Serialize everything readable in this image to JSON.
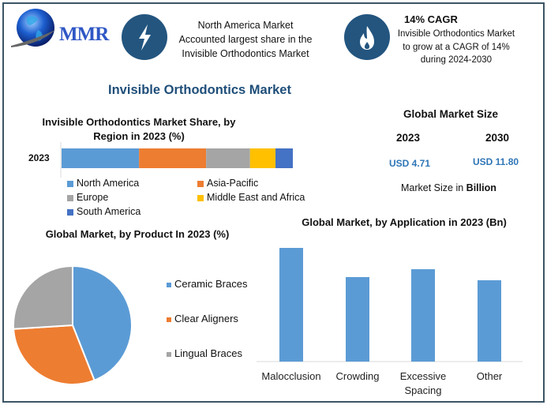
{
  "logo": {
    "text": "MMR"
  },
  "header": {
    "info1": {
      "icon": "lightning-bolt-icon",
      "lines": [
        "North America Market",
        "Accounted largest share in the",
        "Invisible Orthodontics Market"
      ]
    },
    "info2": {
      "icon": "flame-icon",
      "headline": "14% CAGR",
      "lines": [
        "Invisible Orthodontics Market",
        "to grow at a CAGR of 14%",
        "during 2024-2030"
      ]
    }
  },
  "title": "Invisible Orthodontics Market",
  "market_size": {
    "title": "Global Market Size",
    "years": [
      "2023",
      "2030"
    ],
    "values": [
      "USD 4.71",
      "USD 11.80"
    ],
    "note_prefix": "Market Size in ",
    "note_unit": "Billion"
  },
  "colors": {
    "blue": "#5b9bd5",
    "orange": "#ed7d31",
    "gray": "#a5a5a5",
    "yellow": "#ffc000",
    "darkblue": "#4472c4",
    "accent": "#23557f",
    "value": "#2e75b6"
  },
  "chart_data": [
    {
      "type": "bar",
      "orientation": "horizontal-stacked",
      "title": [
        "Invisible Orthodontics Market Share, by",
        "Region in 2023 (%)"
      ],
      "categories": [
        "2023"
      ],
      "series": [
        {
          "name": "North America",
          "values": [
            33.5
          ],
          "color": "#5b9bd5"
        },
        {
          "name": "Asia-Pacific",
          "values": [
            29
          ],
          "color": "#ed7d31"
        },
        {
          "name": "Europe",
          "values": [
            19
          ],
          "color": "#a5a5a5"
        },
        {
          "name": "Middle East and Africa",
          "values": [
            11
          ],
          "color": "#ffc000"
        },
        {
          "name": "South America",
          "values": [
            7.5
          ],
          "color": "#4472c4"
        }
      ],
      "xlim": [
        0,
        100
      ]
    },
    {
      "type": "pie",
      "title": "Global Market, by Product In 2023 (%)",
      "labels": [
        "Ceramic Braces",
        "Clear Aligners",
        "Lingual Braces"
      ],
      "values": [
        44,
        30,
        26
      ],
      "colors": [
        "#5b9bd5",
        "#ed7d31",
        "#a5a5a5"
      ],
      "legend": "right"
    },
    {
      "type": "bar",
      "title": "Global Market, by Application in 2023 (Bn)",
      "categories": [
        [
          "Malocclusion"
        ],
        [
          "Crowding"
        ],
        [
          "Excessive",
          "Spacing"
        ],
        [
          "Other"
        ]
      ],
      "values": [
        1.44,
        1.07,
        1.17,
        1.03
      ],
      "color": "#5b9bd5",
      "ylim": [
        0,
        1.5
      ],
      "grid": false
    }
  ]
}
